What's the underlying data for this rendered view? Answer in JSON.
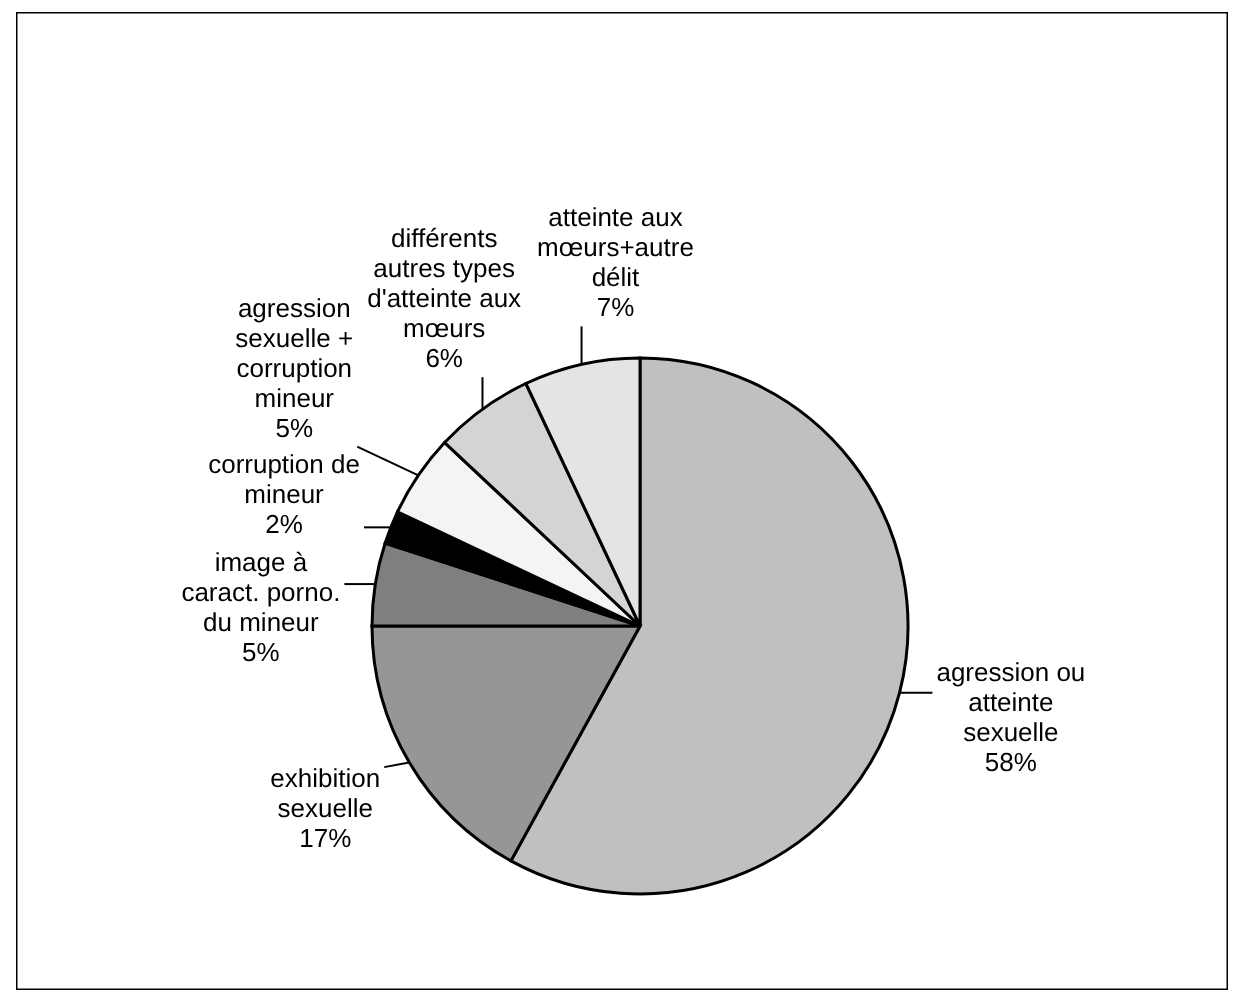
{
  "chart_data": {
    "type": "pie",
    "categories": [
      "agression ou\natteinte\nsexuelle",
      "exhibition\nsexuelle",
      "image à\ncaract. porno.\ndu mineur",
      "corruption de\nmineur",
      "agression\nsexuelle +\ncorruption\nmineur",
      "différents\nautres types\nd'atteinte aux\nmœurs",
      "atteinte aux\nmœurs+autre\ndélit"
    ],
    "values": [
      58,
      17,
      5,
      2,
      5,
      6,
      7
    ],
    "value_labels": [
      "58%",
      "17%",
      "5%",
      "2%",
      "5%",
      "6%",
      "7%"
    ],
    "colors": [
      "#c0c0c0",
      "#969696",
      "#7f7f7f",
      "#000000",
      "#f4f4f4",
      "#d4d4d4",
      "#e4e4e4"
    ]
  }
}
